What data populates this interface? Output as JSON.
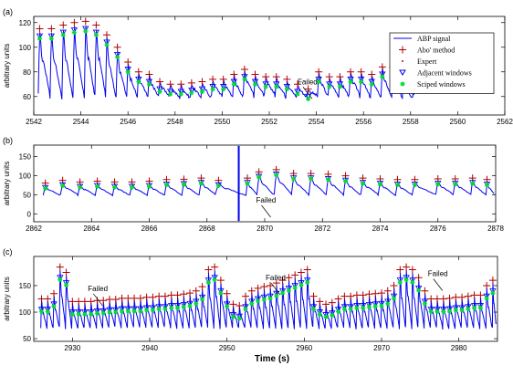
{
  "figure": {
    "xlabel_bottom": "Time (s)"
  },
  "colors": {
    "signal": "#0000ee",
    "abo": "#b00000",
    "expert": "#cc0000",
    "adjacent": "#0000ee",
    "sciped": "#00dd33",
    "axis": "#000000",
    "annot": "#000000"
  },
  "chart_data": [
    {
      "type": "line",
      "panel_label": "(a)",
      "ylabel": "arbitrary units",
      "xlim": [
        2542,
        2562
      ],
      "ylim": [
        45,
        125
      ],
      "xticks": [
        2542,
        2544,
        2546,
        2548,
        2550,
        2552,
        2554,
        2556,
        2558,
        2560,
        2562
      ],
      "yticks": [
        60,
        80,
        100,
        120
      ],
      "legend": {
        "placement": "top-right",
        "entries": [
          "ABP signal",
          "Abo' method",
          "Expert",
          "Adjacent windows",
          "Sciped windows"
        ]
      },
      "annotations": [
        {
          "text": "Failed",
          "x": 2553.2,
          "y": 70
        }
      ],
      "signal": {
        "t_start": 2542,
        "t_end": 2558.1,
        "baseline": 60
      },
      "beats": {
        "t": [
          2542.25,
          2542.75,
          2543.25,
          2543.72,
          2544.2,
          2544.65,
          2545.1,
          2545.55,
          2546.0,
          2546.45,
          2546.9,
          2547.35,
          2547.8,
          2548.25,
          2548.7,
          2549.15,
          2549.6,
          2550.05,
          2550.5,
          2550.95,
          2551.4,
          2551.85,
          2552.3,
          2552.75,
          2553.2,
          2553.65,
          2554.1,
          2554.55,
          2555.0,
          2555.45,
          2555.9,
          2556.35,
          2556.8,
          2557.25,
          2557.7,
          2558.1
        ],
        "systolic": [
          115,
          115,
          118,
          120,
          121,
          118,
          110,
          100,
          88,
          80,
          78,
          72,
          70,
          70,
          71,
          72,
          74,
          74,
          78,
          82,
          78,
          76,
          76,
          74,
          70,
          66,
          80,
          76,
          76,
          80,
          80,
          78,
          84,
          84,
          75,
          78
        ]
      },
      "markers": {
        "abo_offset": 0,
        "adjacent_offset": -6,
        "sciped_offset": -8
      }
    },
    {
      "type": "line",
      "panel_label": "(b)",
      "ylabel": "arbitrary units",
      "xlim": [
        2862,
        2878
      ],
      "ylim": [
        -20,
        180
      ],
      "xticks": [
        2862,
        2864,
        2866,
        2868,
        2870,
        2872,
        2874,
        2876,
        2878
      ],
      "yticks": [
        0,
        50,
        100,
        150
      ],
      "annotations": [
        {
          "text": "Failed",
          "x": 2869.7,
          "y": 30
        }
      ],
      "signal": {
        "t_start": 2862,
        "t_end": 2878,
        "baseline": 50
      },
      "beats": {
        "t": [
          2862.4,
          2863.0,
          2863.6,
          2864.2,
          2864.8,
          2865.4,
          2866.0,
          2866.6,
          2867.2,
          2867.8,
          2868.4,
          2869.4,
          2869.8,
          2870.4,
          2871.0,
          2871.6,
          2872.2,
          2872.8,
          2873.4,
          2874.0,
          2874.6,
          2875.2,
          2876.0,
          2876.6,
          2877.2,
          2877.7
        ],
        "systolic": [
          75,
          82,
          78,
          80,
          78,
          78,
          80,
          84,
          85,
          88,
          82,
          88,
          104,
          110,
          100,
          100,
          98,
          94,
          88,
          86,
          84,
          84,
          86,
          86,
          88,
          84
        ]
      },
      "artifact": {
        "t": 2869.1,
        "low": -18,
        "high": 178
      },
      "markers": {
        "abo_offset": 6,
        "adjacent_offset": -6,
        "sciped_offset": -8
      }
    },
    {
      "type": "line",
      "panel_label": "(c)",
      "ylabel": "arbitrary units",
      "xlabel": "Time (s)",
      "xlim": [
        2925,
        2985
      ],
      "ylim": [
        45,
        205
      ],
      "xticks": [
        2930,
        2940,
        2950,
        2960,
        2970,
        2980
      ],
      "yticks": [
        50,
        100,
        150
      ],
      "annotations": [
        {
          "text": "Failed",
          "x": 2932,
          "y": 140
        },
        {
          "text": "Failed",
          "x": 2955,
          "y": 160
        },
        {
          "text": "Failed",
          "x": 2976,
          "y": 168
        }
      ],
      "signal": {
        "t_start": 2925,
        "t_end": 2985,
        "baseline": 70
      },
      "beats": {
        "t": [
          2926.0,
          2926.8,
          2927.6,
          2928.4,
          2929.2,
          2930.0,
          2930.8,
          2931.6,
          2932.4,
          2933.2,
          2934.0,
          2934.8,
          2935.6,
          2936.4,
          2937.2,
          2938.0,
          2938.8,
          2939.6,
          2940.4,
          2941.2,
          2942.0,
          2942.8,
          2943.6,
          2944.4,
          2945.2,
          2946.0,
          2946.8,
          2947.6,
          2948.4,
          2949.2,
          2950.0,
          2950.8,
          2951.6,
          2952.4,
          2953.2,
          2954.0,
          2954.8,
          2955.6,
          2956.4,
          2957.2,
          2958.0,
          2958.8,
          2959.6,
          2960.4,
          2961.2,
          2962.0,
          2962.8,
          2963.6,
          2964.4,
          2965.2,
          2966.0,
          2966.8,
          2967.6,
          2968.4,
          2969.2,
          2970.0,
          2970.8,
          2971.6,
          2972.4,
          2973.2,
          2974.0,
          2974.8,
          2975.6,
          2976.4,
          2977.2,
          2978.0,
          2978.8,
          2979.6,
          2980.4,
          2981.2,
          2982.0,
          2982.8,
          2983.6,
          2984.4
        ],
        "systolic": [
          125,
          125,
          135,
          185,
          175,
          120,
          120,
          120,
          120,
          122,
          122,
          124,
          124,
          126,
          126,
          126,
          126,
          128,
          128,
          130,
          130,
          132,
          132,
          134,
          136,
          140,
          148,
          180,
          185,
          160,
          135,
          115,
          112,
          130,
          140,
          145,
          148,
          150,
          155,
          160,
          165,
          170,
          175,
          180,
          130,
          120,
          115,
          118,
          125,
          130,
          130,
          132,
          132,
          134,
          135,
          136,
          140,
          150,
          180,
          185,
          180,
          165,
          140,
          125,
          125,
          125,
          126,
          128,
          128,
          130,
          132,
          132,
          150,
          160
        ]
      },
      "markers": {
        "abo_offset": 0,
        "adjacent_offset": -20,
        "sciped_offset": -24
      }
    }
  ]
}
